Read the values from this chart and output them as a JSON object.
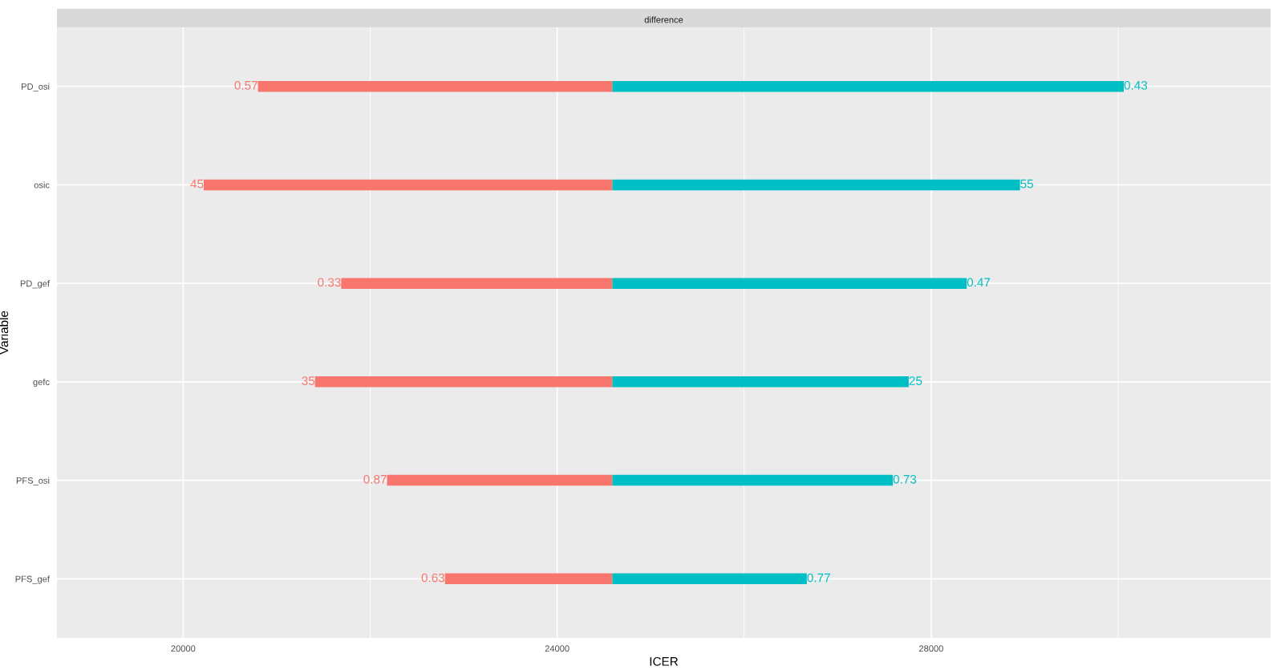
{
  "chart_data": {
    "type": "bar",
    "orientation": "horizontal",
    "title": "difference",
    "xlabel": "ICER",
    "ylabel": "Variable",
    "categories": [
      "PD_osi",
      "osic",
      "PD_gef",
      "gefc",
      "PFS_osi",
      "PFS_gef"
    ],
    "series": [
      {
        "color": "#f8766d",
        "base": [
          24590,
          24590,
          24590,
          24590,
          24590,
          24590
        ],
        "values": [
          -3790,
          -4370,
          -2900,
          -3180,
          -2410,
          -1790
        ]
      },
      {
        "color": "#00bfc4",
        "base": [
          24590,
          24590,
          24590,
          24590,
          24590,
          24590
        ],
        "values": [
          5470,
          4360,
          3790,
          3170,
          3000,
          2080
        ]
      }
    ],
    "annotations": [
      {
        "text": "0.57",
        "x": 20800,
        "y": "PD_osi"
      },
      {
        "text": "0.43",
        "x": 30060,
        "y": "PD_osi"
      },
      {
        "text": "45",
        "x": 20220,
        "y": "osic"
      },
      {
        "text": "55",
        "x": 28950,
        "y": "osic"
      },
      {
        "text": "0.33",
        "x": 21690,
        "y": "PD_gef"
      },
      {
        "text": "0.47",
        "x": 28380,
        "y": "PD_gef"
      },
      {
        "text": "35",
        "x": 21410,
        "y": "gefc"
      },
      {
        "text": "25",
        "x": 27760,
        "y": "gefc"
      },
      {
        "text": "0.87",
        "x": 22180,
        "y": "PFS_osi"
      },
      {
        "text": "0.73",
        "x": 27590,
        "y": "PFS_osi"
      },
      {
        "text": "0.63",
        "x": 22800,
        "y": "PFS_gef"
      },
      {
        "text": "0.77",
        "x": 26670,
        "y": "PFS_gef"
      }
    ],
    "xlim": [
      18650,
      31630
    ],
    "xticks": [
      20000,
      24000,
      28000
    ],
    "grid": true
  }
}
